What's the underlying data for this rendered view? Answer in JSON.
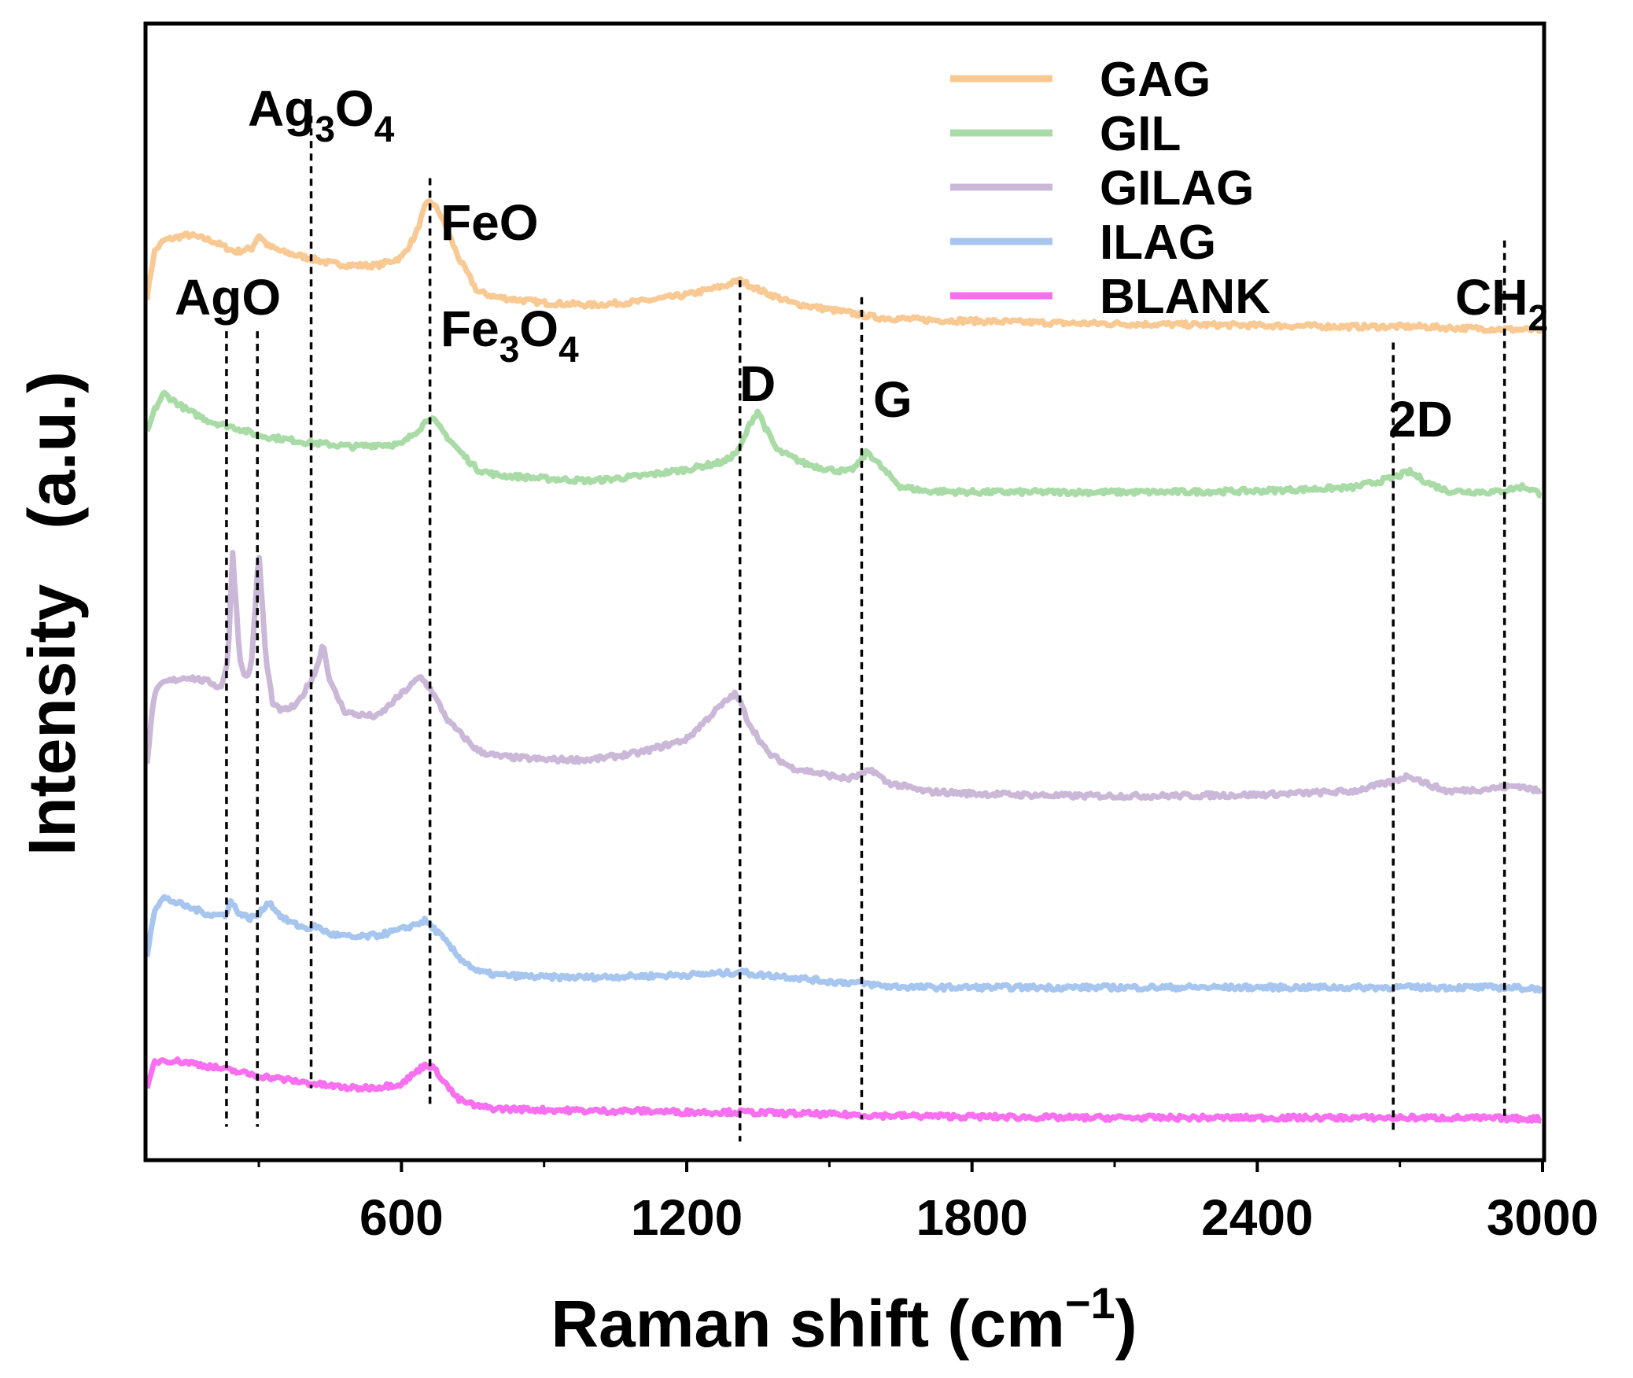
{
  "chart_data": {
    "type": "line",
    "title": "",
    "xlabel": "Raman shift (cm",
    "xlabel_sup": "−1",
    "xlabel_close": ")",
    "ylabel": "Intensity   (a.u.)",
    "xlim": [
      65,
      3000
    ],
    "ylim": [
      0,
      100
    ],
    "yticks_shown": false,
    "x_ticks": [
      600,
      1200,
      1800,
      2400,
      3000
    ],
    "x_tick_labels": [
      "600",
      "1200",
      "1800",
      "2400",
      "3000"
    ],
    "legend_position": "top-right",
    "series": [
      {
        "name": "GAG",
        "color": "#f9c994",
        "x": [
          65,
          80,
          100,
          150,
          200,
          250,
          285,
          300,
          320,
          350,
          400,
          450,
          500,
          550,
          600,
          630,
          650,
          660,
          680,
          700,
          720,
          760,
          800,
          900,
          1000,
          1100,
          1200,
          1280,
          1310,
          1360,
          1420,
          1500,
          1560,
          1600,
          1700,
          1800,
          2000,
          2200,
          2400,
          2600,
          2750,
          2800,
          2900,
          3000
        ],
        "y": [
          76,
          80,
          81,
          81.5,
          81,
          80,
          80.3,
          81.5,
          80.5,
          80,
          79.5,
          79,
          78.8,
          78.8,
          79.5,
          81.5,
          84,
          84.5,
          83.5,
          81.5,
          79.5,
          76.5,
          76,
          75.5,
          75.3,
          75.6,
          76.2,
          77,
          77.5,
          76.5,
          75.5,
          74.9,
          74.5,
          74.2,
          74,
          73.9,
          73.7,
          73.6,
          73.5,
          73.4,
          73.4,
          73.3,
          73.2,
          73.1
        ]
      },
      {
        "name": "GIL",
        "color": "#a8dba6",
        "x": [
          65,
          80,
          100,
          150,
          200,
          250,
          300,
          350,
          400,
          450,
          500,
          550,
          600,
          640,
          660,
          690,
          720,
          760,
          800,
          900,
          1000,
          1100,
          1200,
          1280,
          1310,
          1335,
          1350,
          1365,
          1390,
          1450,
          1500,
          1540,
          1560,
          1580,
          1620,
          1650,
          1700,
          1800,
          2000,
          2200,
          2400,
          2600,
          2680,
          2720,
          2760,
          2800,
          2900,
          2960,
          3000
        ],
        "y": [
          64,
          66,
          67.5,
          66,
          65,
          64.5,
          63.8,
          63.5,
          63.2,
          63,
          62.8,
          63,
          63,
          64.5,
          65.5,
          64,
          62.5,
          60.8,
          60.3,
          60,
          59.8,
          60.2,
          60.8,
          61.5,
          62.5,
          65,
          66,
          64.5,
          62.5,
          61.3,
          60.8,
          60.6,
          61.2,
          62.4,
          60.5,
          59.3,
          58.9,
          58.8,
          58.8,
          58.8,
          58.9,
          59.2,
          60,
          60.6,
          59.6,
          58.9,
          58.8,
          59.3,
          58.6
        ]
      },
      {
        "name": "GILAG",
        "color": "#cbb8d8",
        "x": [
          65,
          80,
          100,
          150,
          200,
          220,
          235,
          245,
          260,
          275,
          285,
          300,
          315,
          330,
          350,
          380,
          400,
          420,
          435,
          450,
          480,
          500,
          550,
          600,
          640,
          660,
          700,
          760,
          800,
          900,
          1000,
          1100,
          1200,
          1260,
          1300,
          1310,
          1330,
          1370,
          1420,
          1500,
          1540,
          1570,
          1590,
          1620,
          1700,
          1800,
          2000,
          2200,
          2400,
          2600,
          2680,
          2720,
          2760,
          2800,
          2880,
          2950,
          3000
        ],
        "y": [
          35,
          41,
          42,
          42.5,
          42,
          41.5,
          44,
          53.5,
          44,
          42.2,
          44,
          53.5,
          44,
          40,
          39.5,
          40,
          41.5,
          43,
          45.5,
          42,
          39.5,
          39.2,
          39,
          41,
          42.5,
          41.5,
          38.5,
          36,
          35.5,
          35.2,
          35.2,
          35.8,
          37,
          39.5,
          41,
          40.5,
          38.5,
          35.8,
          34.5,
          33.8,
          33.5,
          33.9,
          34.3,
          33.2,
          32.4,
          32.2,
          32,
          32,
          32.1,
          32.4,
          33.2,
          33.8,
          33,
          32.4,
          32.6,
          32.9,
          32.3
        ]
      },
      {
        "name": "ILAG",
        "color": "#a6c5ef",
        "x": [
          65,
          80,
          100,
          150,
          200,
          230,
          240,
          260,
          280,
          300,
          320,
          350,
          380,
          400,
          420,
          450,
          500,
          550,
          600,
          650,
          680,
          720,
          760,
          800,
          900,
          1000,
          1100,
          1200,
          1300,
          1310,
          1350,
          1400,
          1500,
          1560,
          1580,
          1620,
          1700,
          1800,
          2000,
          2200,
          2400,
          2600,
          2800,
          2900,
          3000
        ],
        "y": [
          18,
          22,
          23,
          22.2,
          21.5,
          21.5,
          22.7,
          21.6,
          21.2,
          21.5,
          22.7,
          21.2,
          20.6,
          20.3,
          20.5,
          19.8,
          19.5,
          19.7,
          20.2,
          21,
          19.8,
          17.8,
          16.5,
          16.2,
          16,
          16,
          16.1,
          16.2,
          16.4,
          16.5,
          16.2,
          16.1,
          15.6,
          15.5,
          15.4,
          15.2,
          15.1,
          15.1,
          15.1,
          15.1,
          15.1,
          15.1,
          15.1,
          15.1,
          15
        ]
      },
      {
        "name": "BLANK",
        "color": "#f86ff0",
        "x": [
          65,
          80,
          100,
          150,
          200,
          250,
          300,
          350,
          400,
          450,
          500,
          550,
          600,
          630,
          650,
          660,
          680,
          700,
          720,
          760,
          800,
          900,
          1000,
          1100,
          1200,
          1300,
          1400,
          1500,
          1600,
          1800,
          2000,
          2200,
          2400,
          2600,
          2800,
          3000
        ],
        "y": [
          6,
          8.5,
          8.7,
          8.5,
          8.1,
          7.7,
          7.3,
          7,
          6.7,
          6.4,
          6.2,
          6.3,
          6.6,
          7.6,
          8.3,
          8.2,
          7.4,
          6.2,
          5.2,
          4.6,
          4.4,
          4.3,
          4.2,
          4.2,
          4.1,
          4.1,
          4,
          3.9,
          3.8,
          3.7,
          3.6,
          3.6,
          3.6,
          3.6,
          3.6,
          3.5
        ]
      }
    ],
    "annotations": [
      {
        "name": "annotation-ago",
        "text": "AgO",
        "sub": "",
        "tail": "",
        "x": 245,
        "dash_x": [
          232,
          297
        ],
        "y_top": 73,
        "y_bottom": 2.8
      },
      {
        "name": "annotation-ag3o4",
        "text": "Ag",
        "sub": "3",
        "tail": "O",
        "sub2": "4",
        "x": 350,
        "dash_x": [
          410
        ],
        "y_top": 92,
        "y_bottom": 6.2
      },
      {
        "name": "annotation-feo",
        "text": "FeO",
        "sub": "",
        "tail": "",
        "x": 770,
        "dash_x": [
          660
        ],
        "y_top": 86.5,
        "y_bottom": 4.5
      },
      {
        "name": "annotation-fe3o4",
        "text": "Fe",
        "sub": "3",
        "tail": "O",
        "sub2": "4",
        "x": 865,
        "dash_x": [],
        "y_top": 0,
        "y_bottom": 0
      },
      {
        "name": "annotation-d",
        "text": "D",
        "sub": "",
        "tail": "",
        "x": 1312,
        "dash_x": [
          1312
        ],
        "y_top": 77.5,
        "y_bottom": 1.5
      },
      {
        "name": "annotation-g",
        "text": "G",
        "sub": "",
        "tail": "",
        "x": 1568,
        "dash_x": [
          1568
        ],
        "y_top": 76,
        "y_bottom": 3.5
      },
      {
        "name": "annotation-2d",
        "text": "2D",
        "sub": "",
        "tail": "",
        "x": 2686,
        "dash_x": [
          2686
        ],
        "y_top": 72,
        "y_bottom": 2.5
      },
      {
        "name": "annotation-ch2",
        "text": "CH",
        "sub": "2",
        "tail": "",
        "x": 2920,
        "dash_x": [
          2920
        ],
        "y_top": 81,
        "y_bottom": 3.5
      }
    ]
  }
}
